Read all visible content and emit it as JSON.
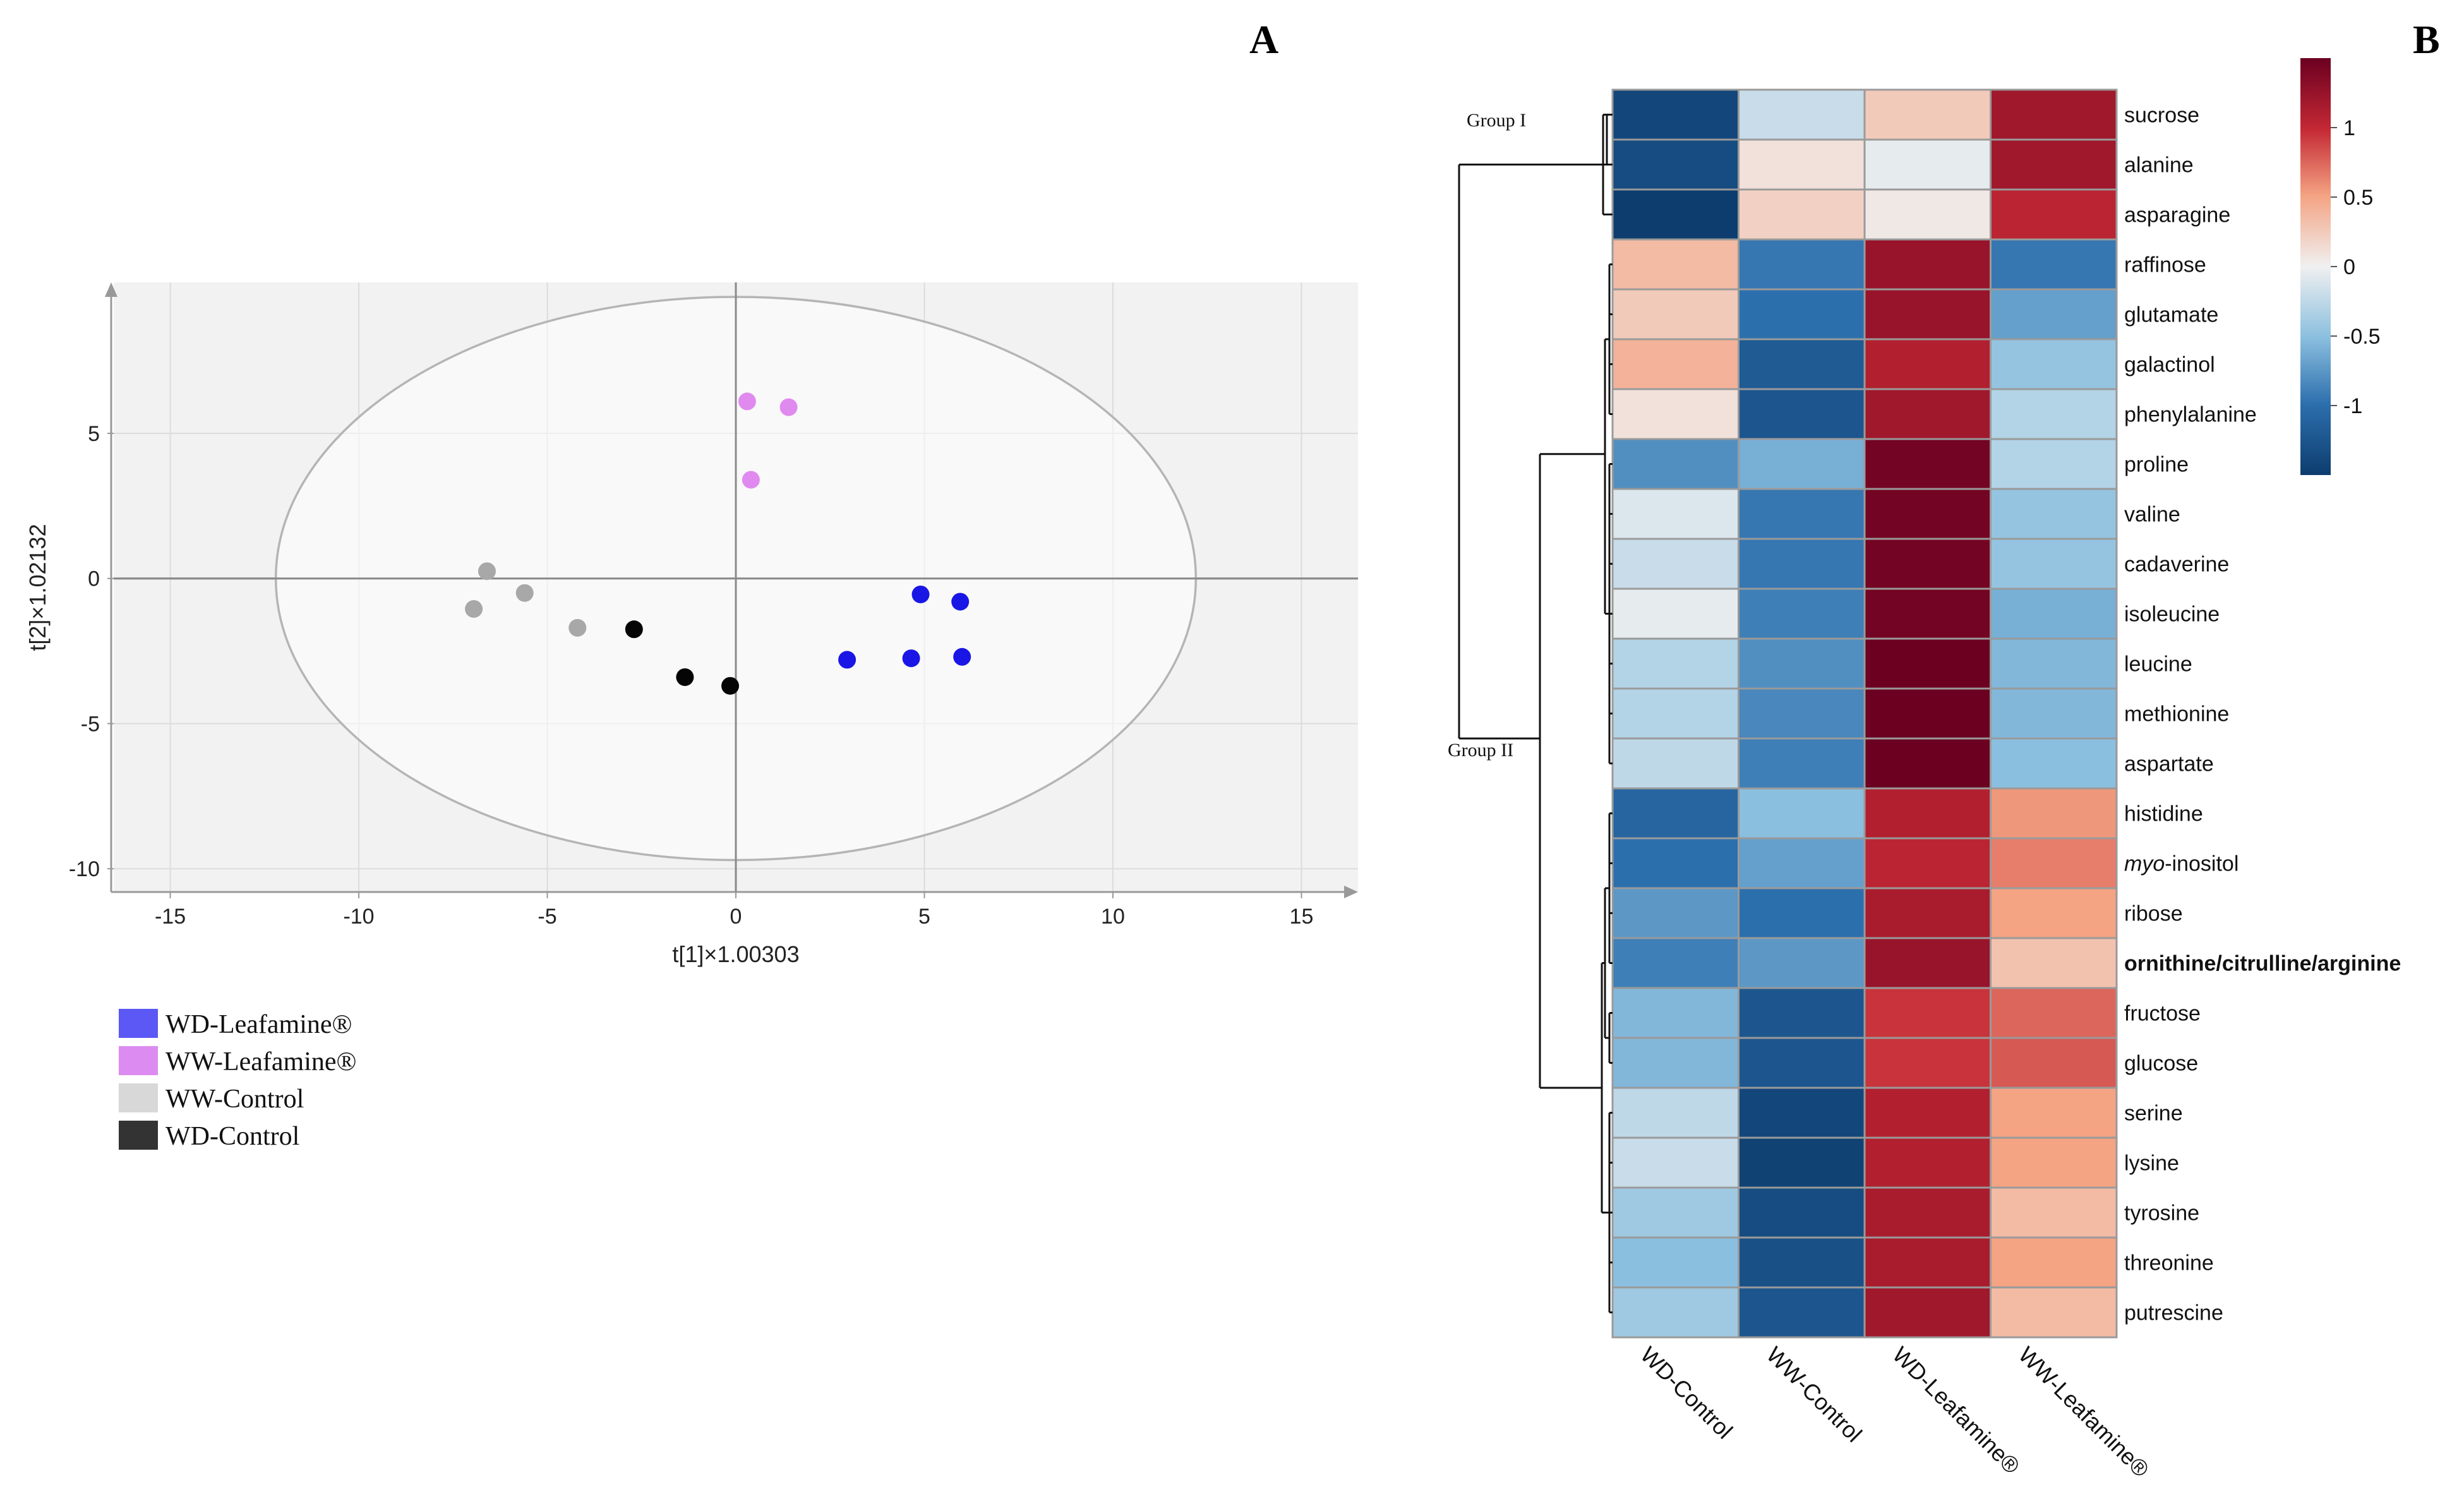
{
  "panels": {
    "a": "A",
    "b": "B"
  },
  "chart_data": [
    {
      "type": "scatter",
      "title": "",
      "xlabel": "t[1]×1.00303",
      "ylabel": "t[2]×1.02132",
      "xlim": [
        -16.5,
        16.5
      ],
      "ylim": [
        -10.8,
        10.2
      ],
      "xticks": [
        -15,
        -10,
        -5,
        0,
        5,
        10,
        15
      ],
      "yticks": [
        -10,
        -5,
        0,
        5
      ],
      "ellipse": {
        "center": [
          0,
          0
        ],
        "rx": 12.2,
        "ry": 9.7
      },
      "series": [
        {
          "name": "WD-Leafamine®",
          "color": "#1a16e6",
          "legend_color": "#5b58f5",
          "points": [
            [
              4.9,
              -0.55
            ],
            [
              5.95,
              -0.8
            ],
            [
              2.95,
              -2.8
            ],
            [
              4.65,
              -2.75
            ],
            [
              6.0,
              -2.7
            ]
          ]
        },
        {
          "name": "WW-Leafamine®",
          "color": "#e08af0",
          "legend_color": "#dc8cf0",
          "points": [
            [
              0.3,
              6.1
            ],
            [
              1.4,
              5.9
            ],
            [
              0.4,
              3.4
            ]
          ]
        },
        {
          "name": "WW-Control",
          "color": "#a8a8a8",
          "legend_color": "#d8d8d8",
          "points": [
            [
              -6.6,
              0.25
            ],
            [
              -5.6,
              -0.5
            ],
            [
              -6.95,
              -1.05
            ],
            [
              -4.2,
              -1.7
            ]
          ]
        },
        {
          "name": "WD-Control",
          "color": "#050505",
          "legend_color": "#333333",
          "points": [
            [
              -2.7,
              -1.75
            ],
            [
              -1.35,
              -3.4
            ],
            [
              -0.15,
              -3.7
            ]
          ]
        }
      ]
    },
    {
      "type": "heatmap",
      "columns": [
        "WD-Control",
        "WW-Control",
        "WD-Leafamine®",
        "WW-Leafamine®"
      ],
      "rows": [
        "sucrose",
        "alanine",
        "asparagine",
        "raffinose",
        "glutamate",
        "galactinol",
        "phenylalanine",
        "proline",
        "valine",
        "cadaverine",
        "isoleucine",
        "leucine",
        "methionine",
        "aspartate",
        "histidine",
        "myo-inositol",
        "ribose",
        "ornithine/citrulline/arginine",
        "fructose",
        "glucose",
        "serine",
        "lysine",
        "tyrosine",
        "threonine",
        "putrescine"
      ],
      "row_labels": [
        {
          "text": "sucrose"
        },
        {
          "text": "alanine"
        },
        {
          "text": "asparagine"
        },
        {
          "text": "raffinose"
        },
        {
          "text": "glutamate"
        },
        {
          "text": "galactinol"
        },
        {
          "text": "phenylalanine"
        },
        {
          "text": "proline"
        },
        {
          "text": "valine"
        },
        {
          "text": "cadaverine"
        },
        {
          "text": "isoleucine"
        },
        {
          "text": "leucine"
        },
        {
          "text": "methionine"
        },
        {
          "text": "aspartate"
        },
        {
          "text": "histidine"
        },
        {
          "text": "-inositol",
          "prefix": "myo"
        },
        {
          "text": "ribose"
        },
        {
          "text": "ornithine/citrulline/arginine",
          "bold": true
        },
        {
          "text": "fructose"
        },
        {
          "text": "glucose"
        },
        {
          "text": "serine"
        },
        {
          "text": "lysine"
        },
        {
          "text": "tyrosine"
        },
        {
          "text": "threonine"
        },
        {
          "text": "putrescine"
        }
      ],
      "values": [
        [
          -1.4,
          -0.2,
          0.25,
          1.2
        ],
        [
          -1.35,
          0.1,
          -0.05,
          1.2
        ],
        [
          -1.55,
          0.2,
          0.05,
          1.05
        ],
        [
          0.35,
          -0.95,
          1.25,
          -0.95
        ],
        [
          0.25,
          -1.0,
          1.25,
          -0.7
        ],
        [
          0.4,
          -1.2,
          1.1,
          -0.45
        ],
        [
          0.1,
          -1.25,
          1.2,
          -0.3
        ],
        [
          -0.8,
          -0.6,
          1.45,
          -0.3
        ],
        [
          -0.1,
          -0.95,
          1.45,
          -0.45
        ],
        [
          -0.2,
          -0.95,
          1.45,
          -0.45
        ],
        [
          -0.05,
          -0.9,
          1.45,
          -0.6
        ],
        [
          -0.3,
          -0.8,
          1.5,
          -0.55
        ],
        [
          -0.3,
          -0.85,
          1.5,
          -0.55
        ],
        [
          -0.25,
          -0.9,
          1.5,
          -0.5
        ],
        [
          -1.1,
          -0.5,
          1.1,
          0.55
        ],
        [
          -1.0,
          -0.7,
          1.05,
          0.65
        ],
        [
          -0.75,
          -1.0,
          1.15,
          0.5
        ],
        [
          -0.9,
          -0.75,
          1.25,
          0.3
        ],
        [
          -0.55,
          -1.25,
          0.95,
          0.75
        ],
        [
          -0.55,
          -1.25,
          0.95,
          0.8
        ],
        [
          -0.25,
          -1.4,
          1.1,
          0.5
        ],
        [
          -0.2,
          -1.45,
          1.1,
          0.5
        ],
        [
          -0.4,
          -1.35,
          1.15,
          0.35
        ],
        [
          -0.5,
          -1.3,
          1.15,
          0.5
        ],
        [
          -0.4,
          -1.25,
          1.2,
          0.35
        ]
      ],
      "colorbar": {
        "min": -1.5,
        "max": 1.5,
        "ticks": [
          "1",
          "0.5",
          "0",
          "-0.5",
          "-1"
        ],
        "tick_values": [
          1,
          0.5,
          0,
          -0.5,
          -1
        ]
      },
      "groups": [
        "Group I",
        "Group II"
      ],
      "colors": {
        "low": "#0d3d6e",
        "mid": "#f0f0f0",
        "high": "#6b0021"
      }
    }
  ]
}
